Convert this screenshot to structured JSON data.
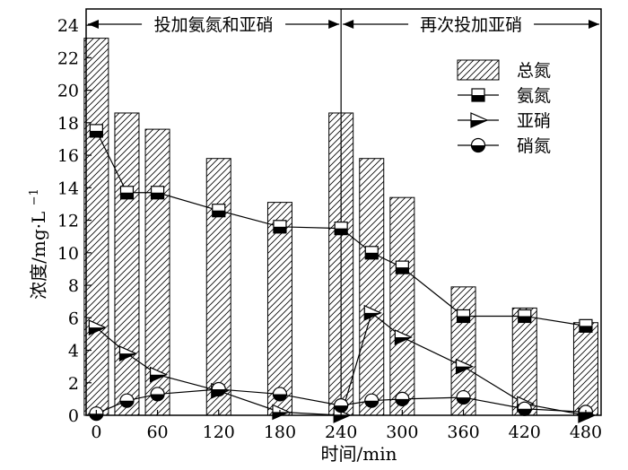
{
  "chart_data": {
    "type": "bar",
    "xlabel": "时间/min",
    "ylabel": "浓度/mg·L",
    "ylabel_sup": "−1",
    "ylim": [
      0,
      25
    ],
    "yticks": [
      0,
      2,
      4,
      6,
      8,
      10,
      12,
      14,
      16,
      18,
      20,
      22,
      24
    ],
    "xlim": [
      -10,
      495
    ],
    "xticks": [
      0,
      60,
      120,
      180,
      240,
      300,
      360,
      420,
      480
    ],
    "phases": [
      {
        "label": "投加氨氮和亚硝",
        "from": -10,
        "to": 240
      },
      {
        "label": "再次投加亚硝",
        "from": 240,
        "to": 495
      }
    ],
    "bars": {
      "name": "总氮",
      "x": [
        0,
        30,
        60,
        120,
        180,
        240,
        270,
        300,
        360,
        420,
        480
      ],
      "values": [
        23.2,
        18.6,
        17.6,
        15.8,
        13.1,
        18.6,
        15.8,
        13.4,
        7.9,
        6.6,
        5.7
      ]
    },
    "series": [
      {
        "name": "氨氮",
        "marker": "square",
        "x": [
          0,
          30,
          60,
          120,
          180,
          240,
          270,
          300,
          360,
          420,
          480
        ],
        "values": [
          17.5,
          13.7,
          13.7,
          12.6,
          11.6,
          11.5,
          10.0,
          9.1,
          6.1,
          6.1,
          5.5
        ]
      },
      {
        "name": "亚硝",
        "marker": "triangle",
        "x": [
          0,
          30,
          60,
          120,
          180,
          240,
          270,
          300,
          360,
          420,
          480
        ],
        "values": [
          5.4,
          3.8,
          2.5,
          1.5,
          0.2,
          0.0,
          6.3,
          4.8,
          3.0,
          0.7,
          0.0
        ]
      },
      {
        "name": "硝氮",
        "marker": "circle",
        "x": [
          0,
          30,
          60,
          120,
          180,
          240,
          270,
          300,
          360,
          420,
          480
        ],
        "values": [
          0.1,
          0.9,
          1.3,
          1.6,
          1.3,
          0.6,
          0.9,
          1.0,
          1.1,
          0.4,
          0.2
        ]
      }
    ],
    "legend": {
      "position": "top-right"
    },
    "grid": false
  }
}
